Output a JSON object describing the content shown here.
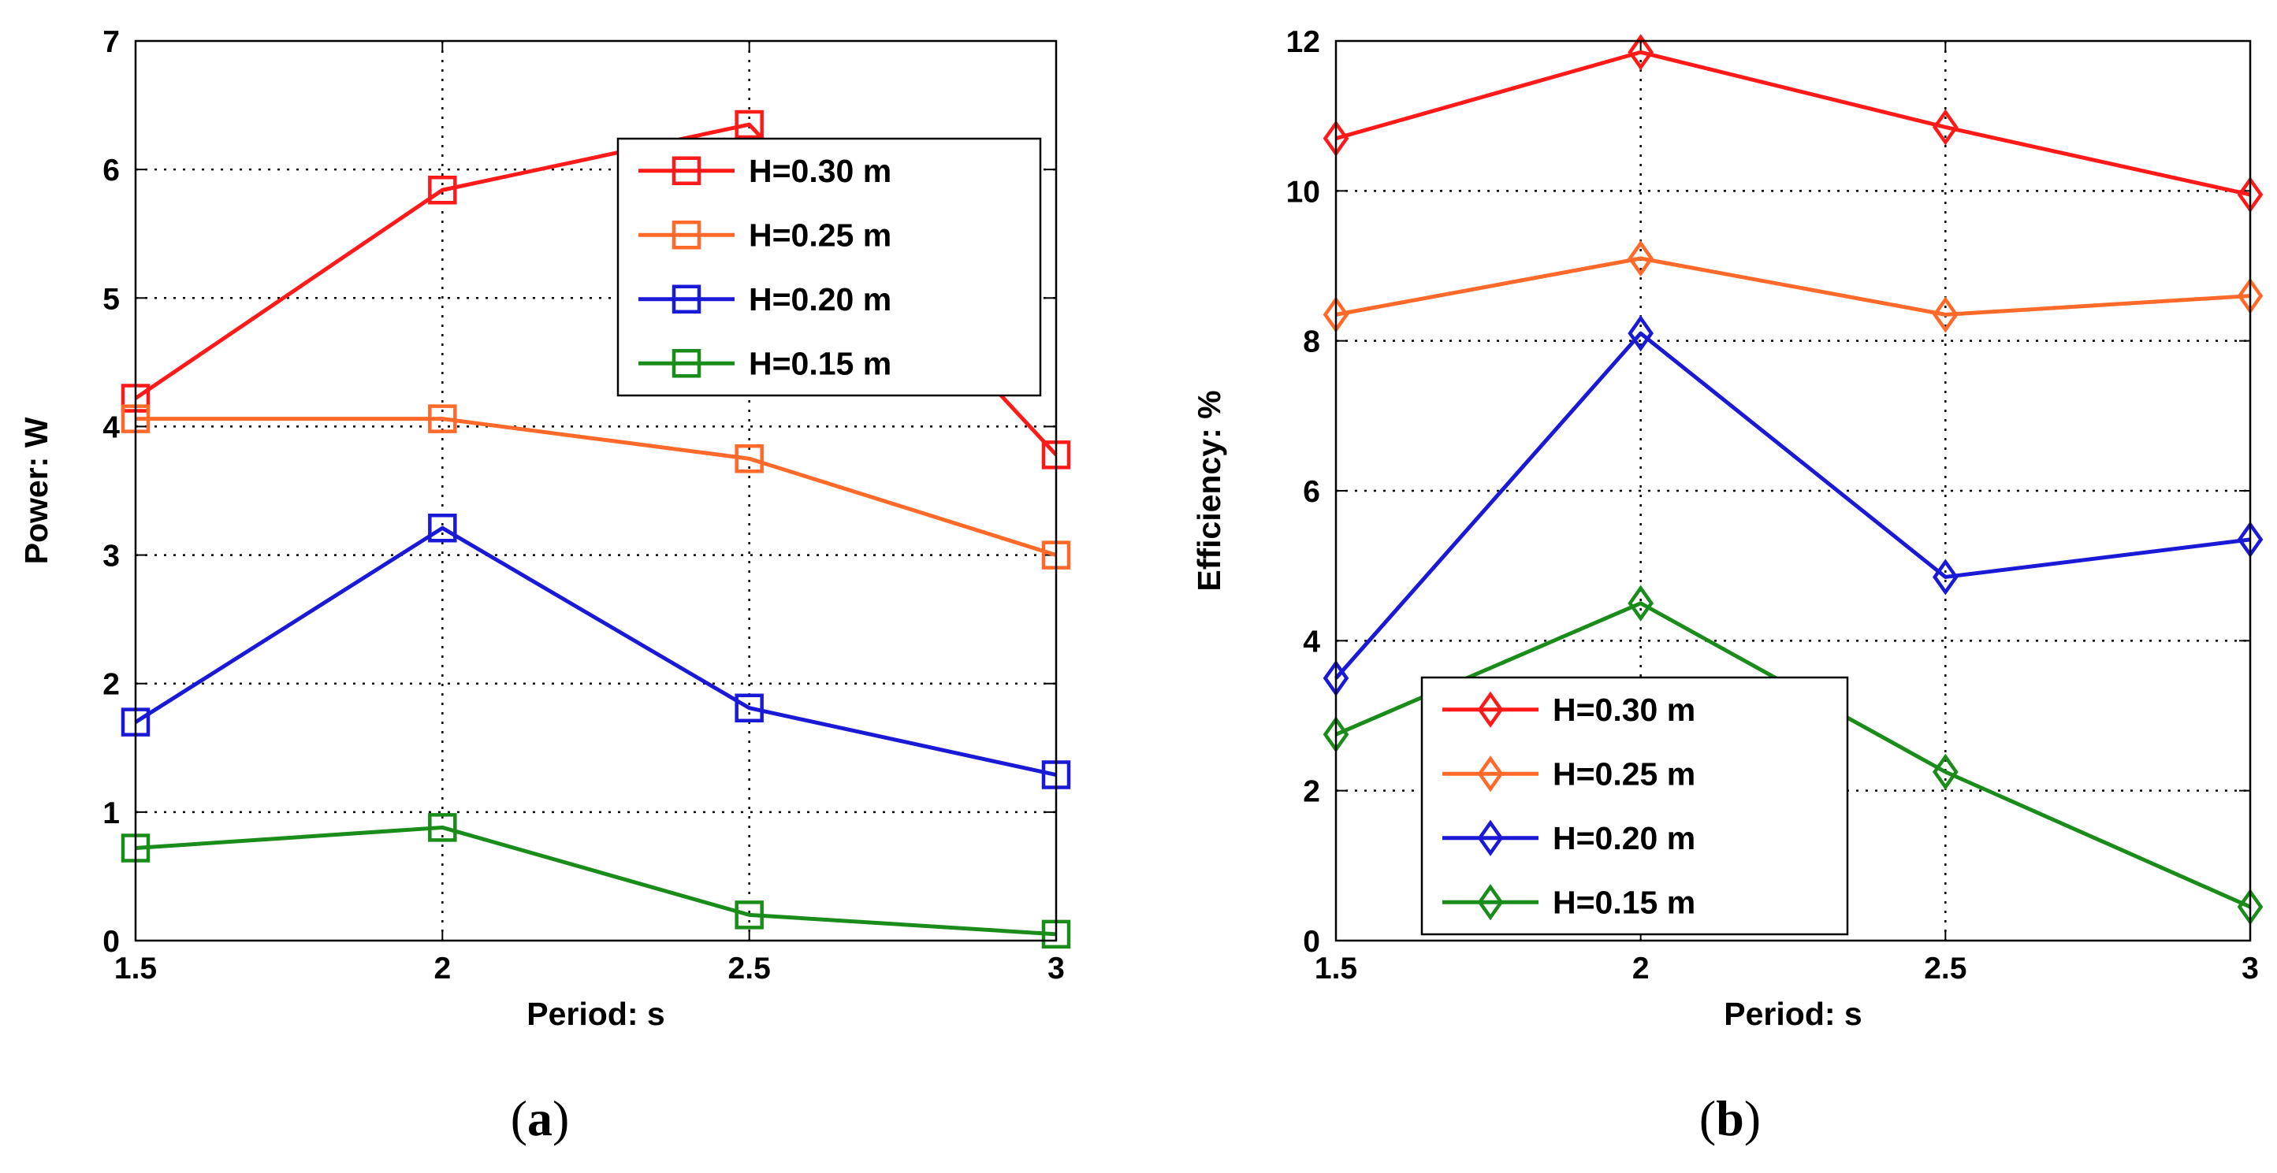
{
  "chart_data": [
    {
      "type": "line",
      "marker": "square",
      "caption_open": "(",
      "caption_letter": "a",
      "caption_close": ")",
      "xlabel": "Period: s",
      "ylabel": "Power: W",
      "xlim": [
        1.5,
        3
      ],
      "ylim": [
        0,
        7
      ],
      "xticks": [
        1.5,
        2,
        2.5,
        3
      ],
      "xtick_labels": [
        "1.5",
        "2",
        "2.5",
        "3"
      ],
      "yticks": [
        0,
        1,
        2,
        3,
        4,
        5,
        6,
        7
      ],
      "ytick_labels": [
        "0",
        "1",
        "2",
        "3",
        "4",
        "5",
        "6",
        "7"
      ],
      "grid": true,
      "legend_position": "top-right",
      "x": [
        1.5,
        2,
        2.5,
        3
      ],
      "series": [
        {
          "name": "H=0.30 m",
          "color": "#ff1a1a",
          "values": [
            4.22,
            5.84,
            6.35,
            3.78
          ]
        },
        {
          "name": "H=0.25 m",
          "color": "#ff6a2a",
          "values": [
            4.06,
            4.06,
            3.75,
            3.0
          ]
        },
        {
          "name": "H=0.20 m",
          "color": "#1a1ad6",
          "values": [
            1.7,
            3.21,
            1.81,
            1.29
          ]
        },
        {
          "name": "H=0.15 m",
          "color": "#1a8c1a",
          "values": [
            0.72,
            0.88,
            0.2,
            0.05
          ]
        }
      ]
    },
    {
      "type": "line",
      "marker": "diamond",
      "caption_open": "(",
      "caption_letter": "b",
      "caption_close": ")",
      "xlabel": "Period: s",
      "ylabel": "Efficiency: %",
      "xlim": [
        1.5,
        3
      ],
      "ylim": [
        0,
        12
      ],
      "xticks": [
        1.5,
        2,
        2.5,
        3
      ],
      "xtick_labels": [
        "1.5",
        "2",
        "2.5",
        "3"
      ],
      "yticks": [
        0,
        2,
        4,
        6,
        8,
        10,
        12
      ],
      "ytick_labels": [
        "0",
        "2",
        "4",
        "6",
        "8",
        "10",
        "12"
      ],
      "grid": true,
      "legend_position": "bottom-left",
      "x": [
        1.5,
        2,
        2.5,
        3
      ],
      "series": [
        {
          "name": "H=0.30 m",
          "color": "#ff1a1a",
          "values": [
            10.7,
            11.85,
            10.85,
            9.95
          ]
        },
        {
          "name": "H=0.25 m",
          "color": "#ff6a2a",
          "values": [
            8.35,
            9.1,
            8.35,
            8.6
          ]
        },
        {
          "name": "H=0.20 m",
          "color": "#1a1ad6",
          "values": [
            3.5,
            8.1,
            4.85,
            5.35
          ]
        },
        {
          "name": "H=0.15 m",
          "color": "#1a8c1a",
          "values": [
            2.75,
            4.5,
            2.25,
            0.45
          ]
        }
      ]
    }
  ]
}
